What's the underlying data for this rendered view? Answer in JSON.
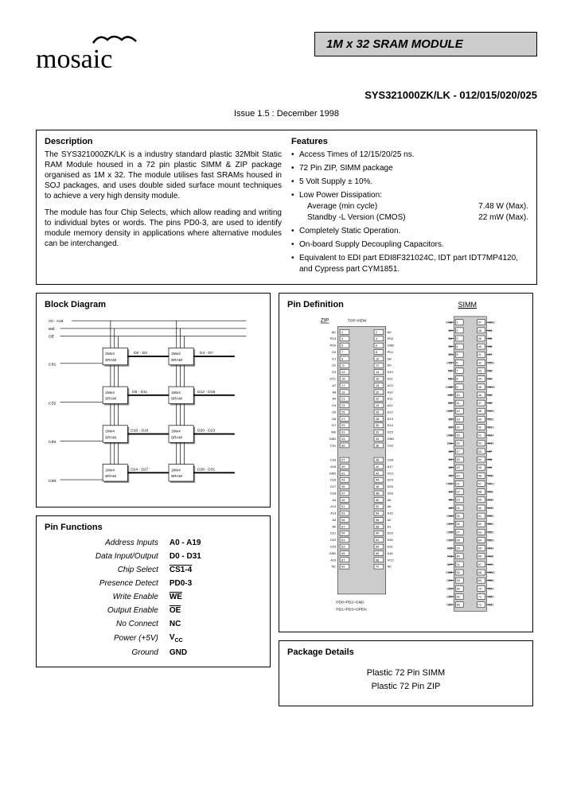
{
  "header": {
    "logo_text": "mosaic",
    "title": "1M  x  32  SRAM  MODULE",
    "part_number": "SYS321000ZK/LK - 012/015/020/025",
    "issue": "Issue 1.5 : December 1998"
  },
  "description": {
    "title": "Description",
    "para1": "The SYS321000ZK/LK is a industry standard plastic 32Mbit Static RAM Module housed in a 72 pin plastic SIMM & ZIP package organised as 1M x 32. The module utilises fast SRAMs housed in SOJ packages, and uses double sided surface mount techniques to achieve a very high density module.",
    "para2": "The module has four Chip Selects, which allow reading and writing to individual bytes or words. The pins PD0-3, are used to identify module memory density in applications where alternative modules can be interchanged."
  },
  "features": {
    "title": "Features",
    "items": [
      "Access Times of  12/15/20/25 ns.",
      "72 Pin ZIP, SIMM package",
      "5 Volt Supply ± 10%.",
      "Low Power Dissipation:",
      "Completely Static Operation.",
      "On-board Supply Decoupling Capacitors.",
      "Equivalent to EDI part EDI8F321024C, IDT part IDT7MP4120, and Cypress part CYM1851."
    ],
    "power_avg_label": "Average (min cycle)",
    "power_avg_val": "7.48  W (Max).",
    "power_standby_label": "Standby  -L Version (CMOS)",
    "power_standby_val": "22  mW (Max)."
  },
  "block_diagram": {
    "title": "Block Diagram",
    "addr_label": "A0 - A19",
    "we": "WE",
    "oe": "OE",
    "cs": [
      "CS1",
      "CS2",
      "CS3",
      "CS4"
    ],
    "sram_blocks": [
      {
        "label": "1Mx4\nSRAM",
        "bus": "D0 - D3"
      },
      {
        "label": "1Mx4\nSRAM",
        "bus": "D4 - D7"
      },
      {
        "label": "1Mx4\nSRAM",
        "bus": "D8 - D11"
      },
      {
        "label": "1Mx4\nSRAM",
        "bus": "D12 - D15"
      },
      {
        "label": "1Mx4\nSRAM",
        "bus": "D16 - D19"
      },
      {
        "label": "1Mx4\nSRAM",
        "bus": "D20 - D23"
      },
      {
        "label": "1Mx4\nSRAM",
        "bus": "D24 - D27"
      },
      {
        "label": "1Mx4\nSRAM",
        "bus": "D28 - D31"
      }
    ]
  },
  "pin_functions": {
    "title": "Pin Functions",
    "rows": [
      {
        "name": "Address Inputs",
        "sig": "A0 - A19",
        "ov": false
      },
      {
        "name": "Data Input/Output",
        "sig": "D0 - D31",
        "ov": false
      },
      {
        "name": "Chip Select",
        "sig": "CS1-4",
        "ov": true
      },
      {
        "name": "Presence Detect",
        "sig": "PD0-3",
        "ov": false
      },
      {
        "name": "Write Enable",
        "sig": "WE",
        "ov": true
      },
      {
        "name": "Output Enable",
        "sig": "OE",
        "ov": true
      },
      {
        "name": "No Connect",
        "sig": "NC",
        "ov": false
      },
      {
        "name": "Power (+5V)",
        "sig": "Vcc",
        "ov": false
      },
      {
        "name": "Ground",
        "sig": "GND",
        "ov": false
      }
    ]
  },
  "pin_definition": {
    "title": "Pin Definition",
    "zip_label": "ZIP",
    "simm_label": "SIMM",
    "top_view": "TOP VIEW",
    "footer1": "PD0=PD2=GND",
    "footer2": "PD1=PD3=OPEN",
    "zip_left": [
      "NC",
      "PD3",
      "PD0",
      "D0",
      "D1",
      "D2",
      "D3",
      "VCC",
      "A7",
      "A8",
      "A9",
      "D4",
      "D5",
      "D6",
      "D7",
      "WE",
      "GND",
      "CS1"
    ],
    "zip_right": [
      "NC",
      "PD2",
      "GND",
      "PD1",
      "D8",
      "D9",
      "D10",
      "D11",
      "VCC",
      "A10",
      "A11",
      "A12",
      "D12",
      "D13",
      "D14",
      "D15",
      "GND",
      "CS2"
    ],
    "zip_left2": [
      "CS3",
      "A16",
      "GND",
      "D16",
      "D17",
      "D18",
      "A4",
      "A14",
      "A13",
      "A3",
      "A0",
      "D21",
      "D22",
      "D23",
      "GND",
      "A19",
      "NC"
    ],
    "zip_right2": [
      "CS4",
      "A17",
      "VCC",
      "D24",
      "D25",
      "D26",
      "A5",
      "A6",
      "A15",
      "A2",
      "A1",
      "D29",
      "D30",
      "D31",
      "A18",
      "VCC",
      "NC"
    ],
    "simm_left": [
      "GND",
      "D0",
      "D1",
      "D2",
      "D3",
      "CS1",
      "NC",
      "NC",
      "GND",
      "WE",
      "NC",
      "VCC",
      "D8",
      "D9",
      "D10",
      "D11",
      "A0",
      "A1",
      "A2",
      "A3",
      "VCC",
      "A4",
      "A5",
      "A6",
      "D16",
      "D17",
      "D18",
      "D19",
      "A15",
      "A16",
      "A17",
      "GND",
      "D24",
      "D25",
      "D26",
      "D27"
    ],
    "simm_right": [
      "GND",
      "D4",
      "D5",
      "D6",
      "D7",
      "CS2",
      "NC",
      "NC",
      "GND",
      "NC",
      "OE",
      "VCC",
      "D12",
      "D13",
      "D14",
      "D15",
      "A7",
      "A8",
      "A9",
      "A10",
      "VCC",
      "A11",
      "A12",
      "A13",
      "D20",
      "D21",
      "D22",
      "D23",
      "A14",
      "A18",
      "A19",
      "GND",
      "D28",
      "D29",
      "D30",
      "D31"
    ]
  },
  "package_details": {
    "title": "Package Details",
    "line1": "Plastic 72 Pin SIMM",
    "line2": "Plastic 72 Pin ZIP"
  },
  "colors": {
    "banner_bg": "#cccccc",
    "border": "#000000",
    "text": "#000000"
  }
}
